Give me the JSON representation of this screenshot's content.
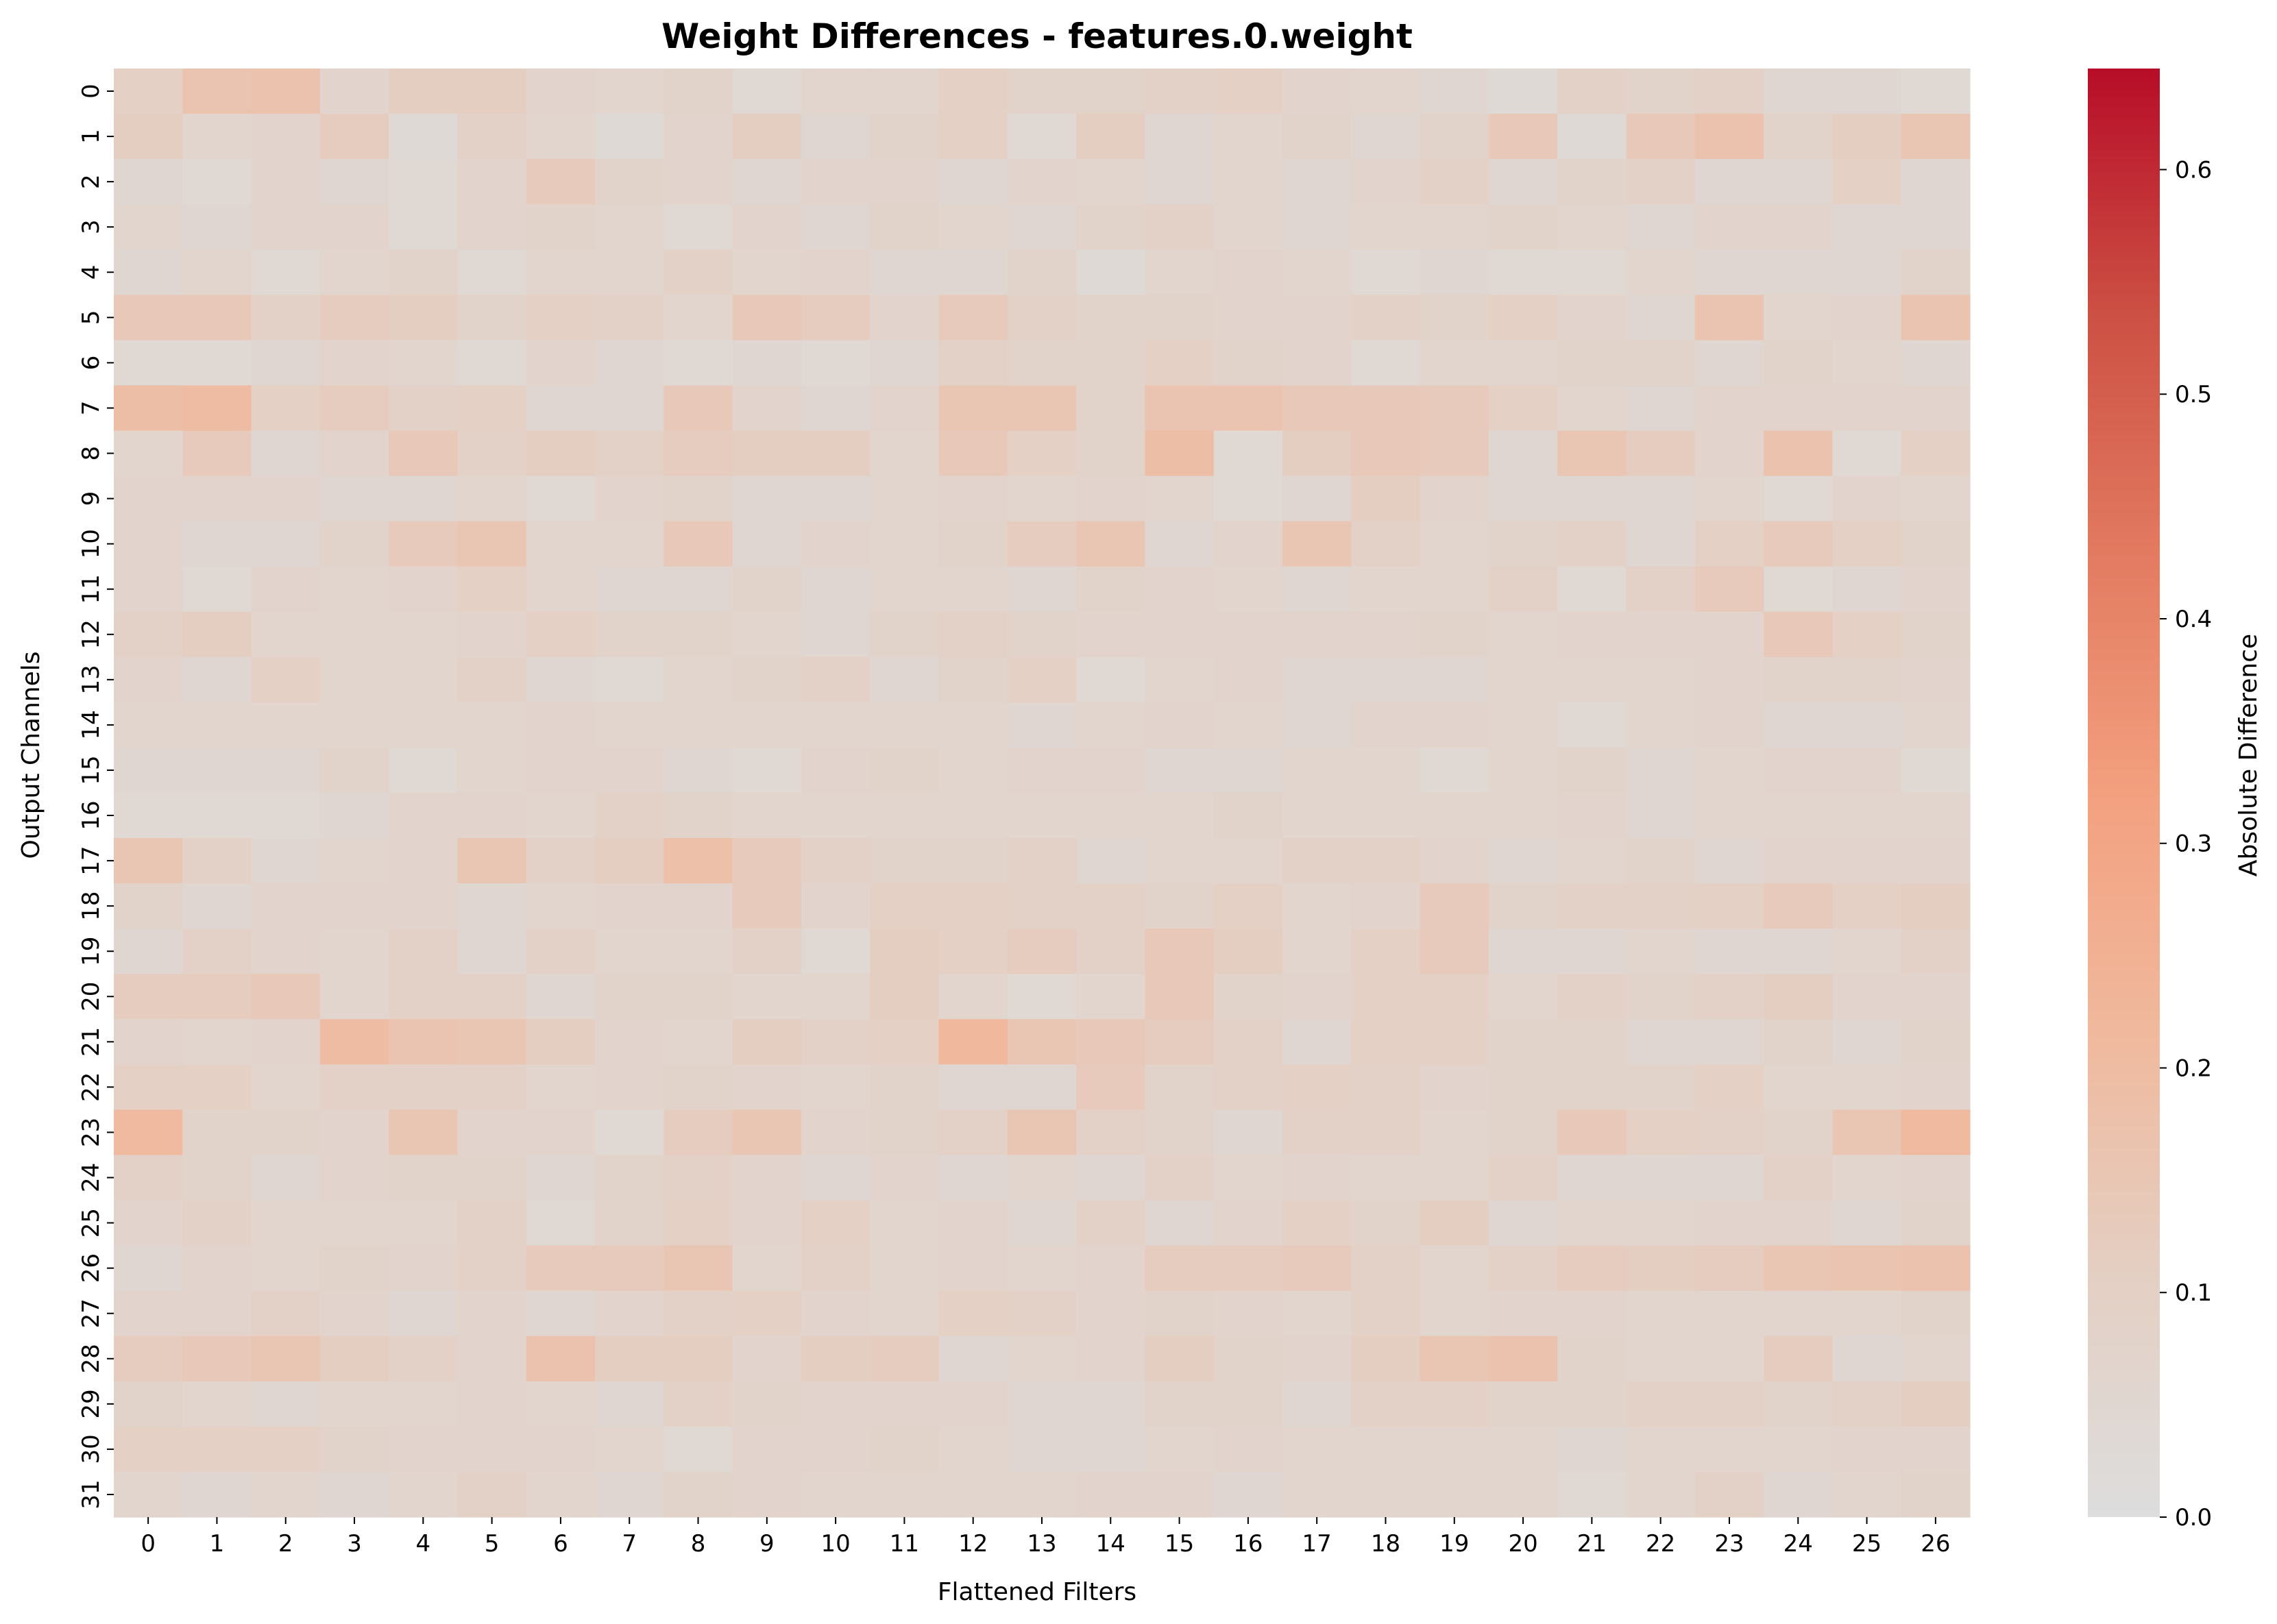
{
  "chart_data": {
    "type": "heatmap",
    "title": "Weight Differences - features.0.weight",
    "xlabel": "Flattened Filters",
    "ylabel": "Output Channels",
    "colorbar_label": "Absolute Difference",
    "x_categories": [
      "0",
      "1",
      "2",
      "3",
      "4",
      "5",
      "6",
      "7",
      "8",
      "9",
      "10",
      "11",
      "12",
      "13",
      "14",
      "15",
      "16",
      "17",
      "18",
      "19",
      "20",
      "21",
      "22",
      "23",
      "24",
      "25",
      "26"
    ],
    "y_categories": [
      "0",
      "1",
      "2",
      "3",
      "4",
      "5",
      "6",
      "7",
      "8",
      "9",
      "10",
      "11",
      "12",
      "13",
      "14",
      "15",
      "16",
      "17",
      "18",
      "19",
      "20",
      "21",
      "22",
      "23",
      "24",
      "25",
      "26",
      "27",
      "28",
      "29",
      "30",
      "31"
    ],
    "colorbar_ticks": [
      "0.0",
      "0.1",
      "0.2",
      "0.3",
      "0.4",
      "0.5",
      "0.6"
    ],
    "vmin": 0.0,
    "vmax": 0.645,
    "colormap": "coolwarm (upper half)",
    "colormap_stops": [
      "#dddddd",
      "#e4cfc3",
      "#f0b99d",
      "#f3a07f",
      "#e27a60",
      "#cc4f43",
      "#b70d28"
    ],
    "values": [
      [
        0.1,
        0.16,
        0.17,
        0.07,
        0.11,
        0.11,
        0.07,
        0.06,
        0.08,
        0.04,
        0.06,
        0.06,
        0.1,
        0.08,
        0.08,
        0.09,
        0.1,
        0.07,
        0.06,
        0.05,
        0.03,
        0.09,
        0.08,
        0.09,
        0.05,
        0.05,
        0.04
      ],
      [
        0.11,
        0.06,
        0.07,
        0.12,
        0.03,
        0.09,
        0.06,
        0.03,
        0.07,
        0.11,
        0.05,
        0.08,
        0.1,
        0.04,
        0.11,
        0.05,
        0.06,
        0.08,
        0.05,
        0.08,
        0.14,
        0.03,
        0.14,
        0.17,
        0.08,
        0.11,
        0.15
      ],
      [
        0.05,
        0.04,
        0.07,
        0.05,
        0.04,
        0.07,
        0.13,
        0.08,
        0.07,
        0.05,
        0.07,
        0.07,
        0.05,
        0.07,
        0.06,
        0.05,
        0.06,
        0.05,
        0.07,
        0.09,
        0.05,
        0.08,
        0.09,
        0.05,
        0.05,
        0.1,
        0.05
      ],
      [
        0.06,
        0.05,
        0.07,
        0.07,
        0.04,
        0.07,
        0.08,
        0.06,
        0.04,
        0.07,
        0.05,
        0.08,
        0.06,
        0.05,
        0.08,
        0.09,
        0.06,
        0.05,
        0.06,
        0.06,
        0.08,
        0.06,
        0.05,
        0.07,
        0.07,
        0.05,
        0.05
      ],
      [
        0.05,
        0.06,
        0.04,
        0.06,
        0.08,
        0.04,
        0.06,
        0.06,
        0.09,
        0.06,
        0.07,
        0.05,
        0.05,
        0.08,
        0.03,
        0.06,
        0.07,
        0.06,
        0.04,
        0.05,
        0.04,
        0.04,
        0.06,
        0.05,
        0.05,
        0.05,
        0.08
      ],
      [
        0.14,
        0.14,
        0.09,
        0.12,
        0.11,
        0.08,
        0.1,
        0.09,
        0.06,
        0.14,
        0.12,
        0.07,
        0.13,
        0.09,
        0.08,
        0.08,
        0.07,
        0.07,
        0.09,
        0.08,
        0.1,
        0.07,
        0.05,
        0.16,
        0.06,
        0.07,
        0.16
      ],
      [
        0.04,
        0.04,
        0.05,
        0.07,
        0.06,
        0.04,
        0.07,
        0.05,
        0.04,
        0.05,
        0.04,
        0.05,
        0.09,
        0.08,
        0.08,
        0.1,
        0.08,
        0.07,
        0.04,
        0.06,
        0.06,
        0.08,
        0.08,
        0.05,
        0.08,
        0.06,
        0.05
      ],
      [
        0.19,
        0.2,
        0.1,
        0.12,
        0.09,
        0.1,
        0.05,
        0.05,
        0.14,
        0.07,
        0.05,
        0.07,
        0.15,
        0.15,
        0.08,
        0.16,
        0.16,
        0.14,
        0.14,
        0.13,
        0.1,
        0.06,
        0.05,
        0.07,
        0.07,
        0.07,
        0.07
      ],
      [
        0.06,
        0.13,
        0.05,
        0.07,
        0.14,
        0.09,
        0.11,
        0.09,
        0.12,
        0.11,
        0.11,
        0.06,
        0.14,
        0.1,
        0.08,
        0.19,
        0.04,
        0.11,
        0.14,
        0.13,
        0.05,
        0.15,
        0.12,
        0.07,
        0.17,
        0.04,
        0.1
      ],
      [
        0.07,
        0.07,
        0.07,
        0.05,
        0.05,
        0.06,
        0.04,
        0.07,
        0.08,
        0.05,
        0.05,
        0.06,
        0.07,
        0.06,
        0.07,
        0.06,
        0.04,
        0.05,
        0.11,
        0.07,
        0.05,
        0.05,
        0.05,
        0.06,
        0.04,
        0.07,
        0.06
      ],
      [
        0.07,
        0.05,
        0.05,
        0.08,
        0.13,
        0.15,
        0.06,
        0.06,
        0.14,
        0.05,
        0.07,
        0.06,
        0.08,
        0.12,
        0.15,
        0.05,
        0.07,
        0.15,
        0.09,
        0.06,
        0.08,
        0.09,
        0.05,
        0.1,
        0.13,
        0.1,
        0.08
      ],
      [
        0.07,
        0.04,
        0.07,
        0.06,
        0.07,
        0.1,
        0.06,
        0.05,
        0.05,
        0.08,
        0.05,
        0.06,
        0.06,
        0.05,
        0.08,
        0.07,
        0.06,
        0.05,
        0.06,
        0.06,
        0.09,
        0.04,
        0.09,
        0.13,
        0.04,
        0.05,
        0.07
      ],
      [
        0.09,
        0.11,
        0.06,
        0.06,
        0.06,
        0.07,
        0.1,
        0.08,
        0.08,
        0.06,
        0.05,
        0.08,
        0.09,
        0.08,
        0.07,
        0.07,
        0.07,
        0.07,
        0.07,
        0.08,
        0.06,
        0.07,
        0.07,
        0.07,
        0.14,
        0.1,
        0.08
      ],
      [
        0.07,
        0.05,
        0.1,
        0.06,
        0.06,
        0.09,
        0.05,
        0.04,
        0.06,
        0.08,
        0.09,
        0.05,
        0.08,
        0.1,
        0.04,
        0.06,
        0.07,
        0.05,
        0.05,
        0.05,
        0.06,
        0.06,
        0.06,
        0.07,
        0.08,
        0.08,
        0.07
      ],
      [
        0.06,
        0.06,
        0.06,
        0.06,
        0.06,
        0.06,
        0.07,
        0.06,
        0.06,
        0.06,
        0.06,
        0.06,
        0.06,
        0.05,
        0.06,
        0.07,
        0.06,
        0.05,
        0.07,
        0.07,
        0.06,
        0.04,
        0.06,
        0.07,
        0.05,
        0.05,
        0.06
      ],
      [
        0.05,
        0.05,
        0.05,
        0.08,
        0.04,
        0.06,
        0.07,
        0.07,
        0.05,
        0.04,
        0.07,
        0.08,
        0.06,
        0.07,
        0.07,
        0.05,
        0.05,
        0.06,
        0.06,
        0.04,
        0.06,
        0.08,
        0.05,
        0.06,
        0.07,
        0.07,
        0.04
      ],
      [
        0.04,
        0.04,
        0.04,
        0.05,
        0.07,
        0.07,
        0.06,
        0.09,
        0.08,
        0.06,
        0.06,
        0.06,
        0.06,
        0.06,
        0.06,
        0.06,
        0.08,
        0.06,
        0.06,
        0.06,
        0.06,
        0.07,
        0.05,
        0.06,
        0.06,
        0.06,
        0.06
      ],
      [
        0.15,
        0.09,
        0.05,
        0.06,
        0.07,
        0.15,
        0.09,
        0.11,
        0.18,
        0.13,
        0.09,
        0.08,
        0.08,
        0.09,
        0.05,
        0.06,
        0.06,
        0.09,
        0.09,
        0.07,
        0.05,
        0.06,
        0.08,
        0.05,
        0.07,
        0.07,
        0.07
      ],
      [
        0.08,
        0.05,
        0.07,
        0.07,
        0.07,
        0.05,
        0.06,
        0.07,
        0.07,
        0.13,
        0.07,
        0.1,
        0.1,
        0.09,
        0.09,
        0.08,
        0.1,
        0.06,
        0.07,
        0.13,
        0.08,
        0.09,
        0.09,
        0.1,
        0.13,
        0.1,
        0.11
      ],
      [
        0.05,
        0.09,
        0.07,
        0.06,
        0.09,
        0.05,
        0.09,
        0.06,
        0.06,
        0.09,
        0.04,
        0.11,
        0.1,
        0.12,
        0.09,
        0.14,
        0.11,
        0.06,
        0.1,
        0.13,
        0.05,
        0.05,
        0.06,
        0.05,
        0.05,
        0.06,
        0.09
      ],
      [
        0.12,
        0.12,
        0.14,
        0.06,
        0.09,
        0.09,
        0.05,
        0.08,
        0.08,
        0.06,
        0.06,
        0.11,
        0.06,
        0.04,
        0.06,
        0.14,
        0.08,
        0.07,
        0.1,
        0.1,
        0.06,
        0.09,
        0.08,
        0.09,
        0.11,
        0.07,
        0.07
      ],
      [
        0.07,
        0.06,
        0.07,
        0.2,
        0.16,
        0.15,
        0.11,
        0.07,
        0.06,
        0.11,
        0.09,
        0.1,
        0.22,
        0.15,
        0.14,
        0.12,
        0.09,
        0.05,
        0.1,
        0.1,
        0.08,
        0.08,
        0.05,
        0.05,
        0.08,
        0.05,
        0.08
      ],
      [
        0.1,
        0.1,
        0.06,
        0.09,
        0.09,
        0.09,
        0.06,
        0.07,
        0.08,
        0.07,
        0.06,
        0.08,
        0.05,
        0.05,
        0.13,
        0.08,
        0.09,
        0.1,
        0.09,
        0.07,
        0.08,
        0.08,
        0.08,
        0.1,
        0.06,
        0.06,
        0.07
      ],
      [
        0.21,
        0.08,
        0.08,
        0.07,
        0.15,
        0.07,
        0.07,
        0.04,
        0.12,
        0.15,
        0.07,
        0.08,
        0.09,
        0.15,
        0.09,
        0.08,
        0.05,
        0.09,
        0.09,
        0.06,
        0.08,
        0.14,
        0.1,
        0.09,
        0.08,
        0.15,
        0.21
      ],
      [
        0.09,
        0.08,
        0.05,
        0.07,
        0.08,
        0.08,
        0.05,
        0.08,
        0.09,
        0.07,
        0.05,
        0.07,
        0.05,
        0.06,
        0.05,
        0.09,
        0.06,
        0.07,
        0.06,
        0.06,
        0.09,
        0.05,
        0.05,
        0.05,
        0.09,
        0.06,
        0.07
      ],
      [
        0.07,
        0.09,
        0.06,
        0.06,
        0.06,
        0.09,
        0.04,
        0.08,
        0.1,
        0.07,
        0.1,
        0.06,
        0.07,
        0.05,
        0.09,
        0.05,
        0.07,
        0.1,
        0.08,
        0.11,
        0.05,
        0.06,
        0.06,
        0.07,
        0.07,
        0.05,
        0.08
      ],
      [
        0.05,
        0.07,
        0.06,
        0.08,
        0.07,
        0.09,
        0.13,
        0.13,
        0.15,
        0.06,
        0.09,
        0.06,
        0.07,
        0.06,
        0.07,
        0.12,
        0.12,
        0.13,
        0.09,
        0.06,
        0.09,
        0.12,
        0.11,
        0.12,
        0.15,
        0.16,
        0.17
      ],
      [
        0.07,
        0.07,
        0.09,
        0.07,
        0.05,
        0.07,
        0.05,
        0.07,
        0.09,
        0.1,
        0.07,
        0.06,
        0.1,
        0.09,
        0.07,
        0.08,
        0.07,
        0.06,
        0.09,
        0.06,
        0.07,
        0.07,
        0.06,
        0.06,
        0.06,
        0.06,
        0.08
      ],
      [
        0.12,
        0.14,
        0.15,
        0.11,
        0.09,
        0.07,
        0.17,
        0.11,
        0.11,
        0.07,
        0.11,
        0.12,
        0.05,
        0.06,
        0.07,
        0.11,
        0.08,
        0.07,
        0.11,
        0.15,
        0.17,
        0.08,
        0.06,
        0.06,
        0.12,
        0.05,
        0.06
      ],
      [
        0.08,
        0.06,
        0.05,
        0.06,
        0.06,
        0.07,
        0.06,
        0.05,
        0.09,
        0.08,
        0.07,
        0.07,
        0.07,
        0.05,
        0.05,
        0.08,
        0.08,
        0.05,
        0.09,
        0.09,
        0.08,
        0.08,
        0.09,
        0.09,
        0.08,
        0.09,
        0.11
      ],
      [
        0.1,
        0.1,
        0.1,
        0.08,
        0.07,
        0.07,
        0.07,
        0.06,
        0.04,
        0.07,
        0.07,
        0.08,
        0.06,
        0.05,
        0.05,
        0.06,
        0.07,
        0.06,
        0.06,
        0.06,
        0.06,
        0.05,
        0.06,
        0.06,
        0.06,
        0.07,
        0.07
      ],
      [
        0.06,
        0.05,
        0.06,
        0.05,
        0.06,
        0.09,
        0.06,
        0.05,
        0.08,
        0.07,
        0.06,
        0.06,
        0.06,
        0.06,
        0.07,
        0.07,
        0.05,
        0.06,
        0.06,
        0.06,
        0.06,
        0.04,
        0.06,
        0.09,
        0.05,
        0.06,
        0.08
      ]
    ]
  }
}
